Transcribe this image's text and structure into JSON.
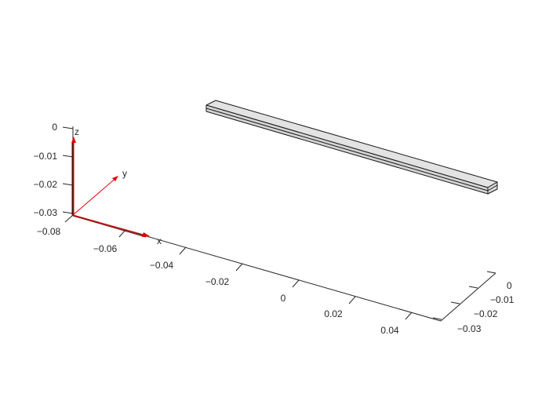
{
  "colors": {
    "background": "#ffffff",
    "axis": "#262626",
    "triad": "#e60000",
    "beam_top": "#e3e3e3",
    "beam_side": "#d4d4d4",
    "beam_edge": "#1a1a1a"
  },
  "axes": {
    "x": {
      "ticks": [
        "−0.08",
        "−0.06",
        "−0.04",
        "−0.02",
        "0",
        "0.02",
        "0.04"
      ]
    },
    "y": {
      "ticks": [
        "0",
        "−0.01",
        "−0.02",
        "−0.03"
      ]
    },
    "z": {
      "ticks": [
        "0",
        "−0.01",
        "−0.02",
        "−0.03"
      ]
    }
  },
  "triad": {
    "x_label": "x",
    "y_label": "y",
    "z_label": "z"
  },
  "beam": {
    "shape": "rectangular bar",
    "layers": 2
  }
}
